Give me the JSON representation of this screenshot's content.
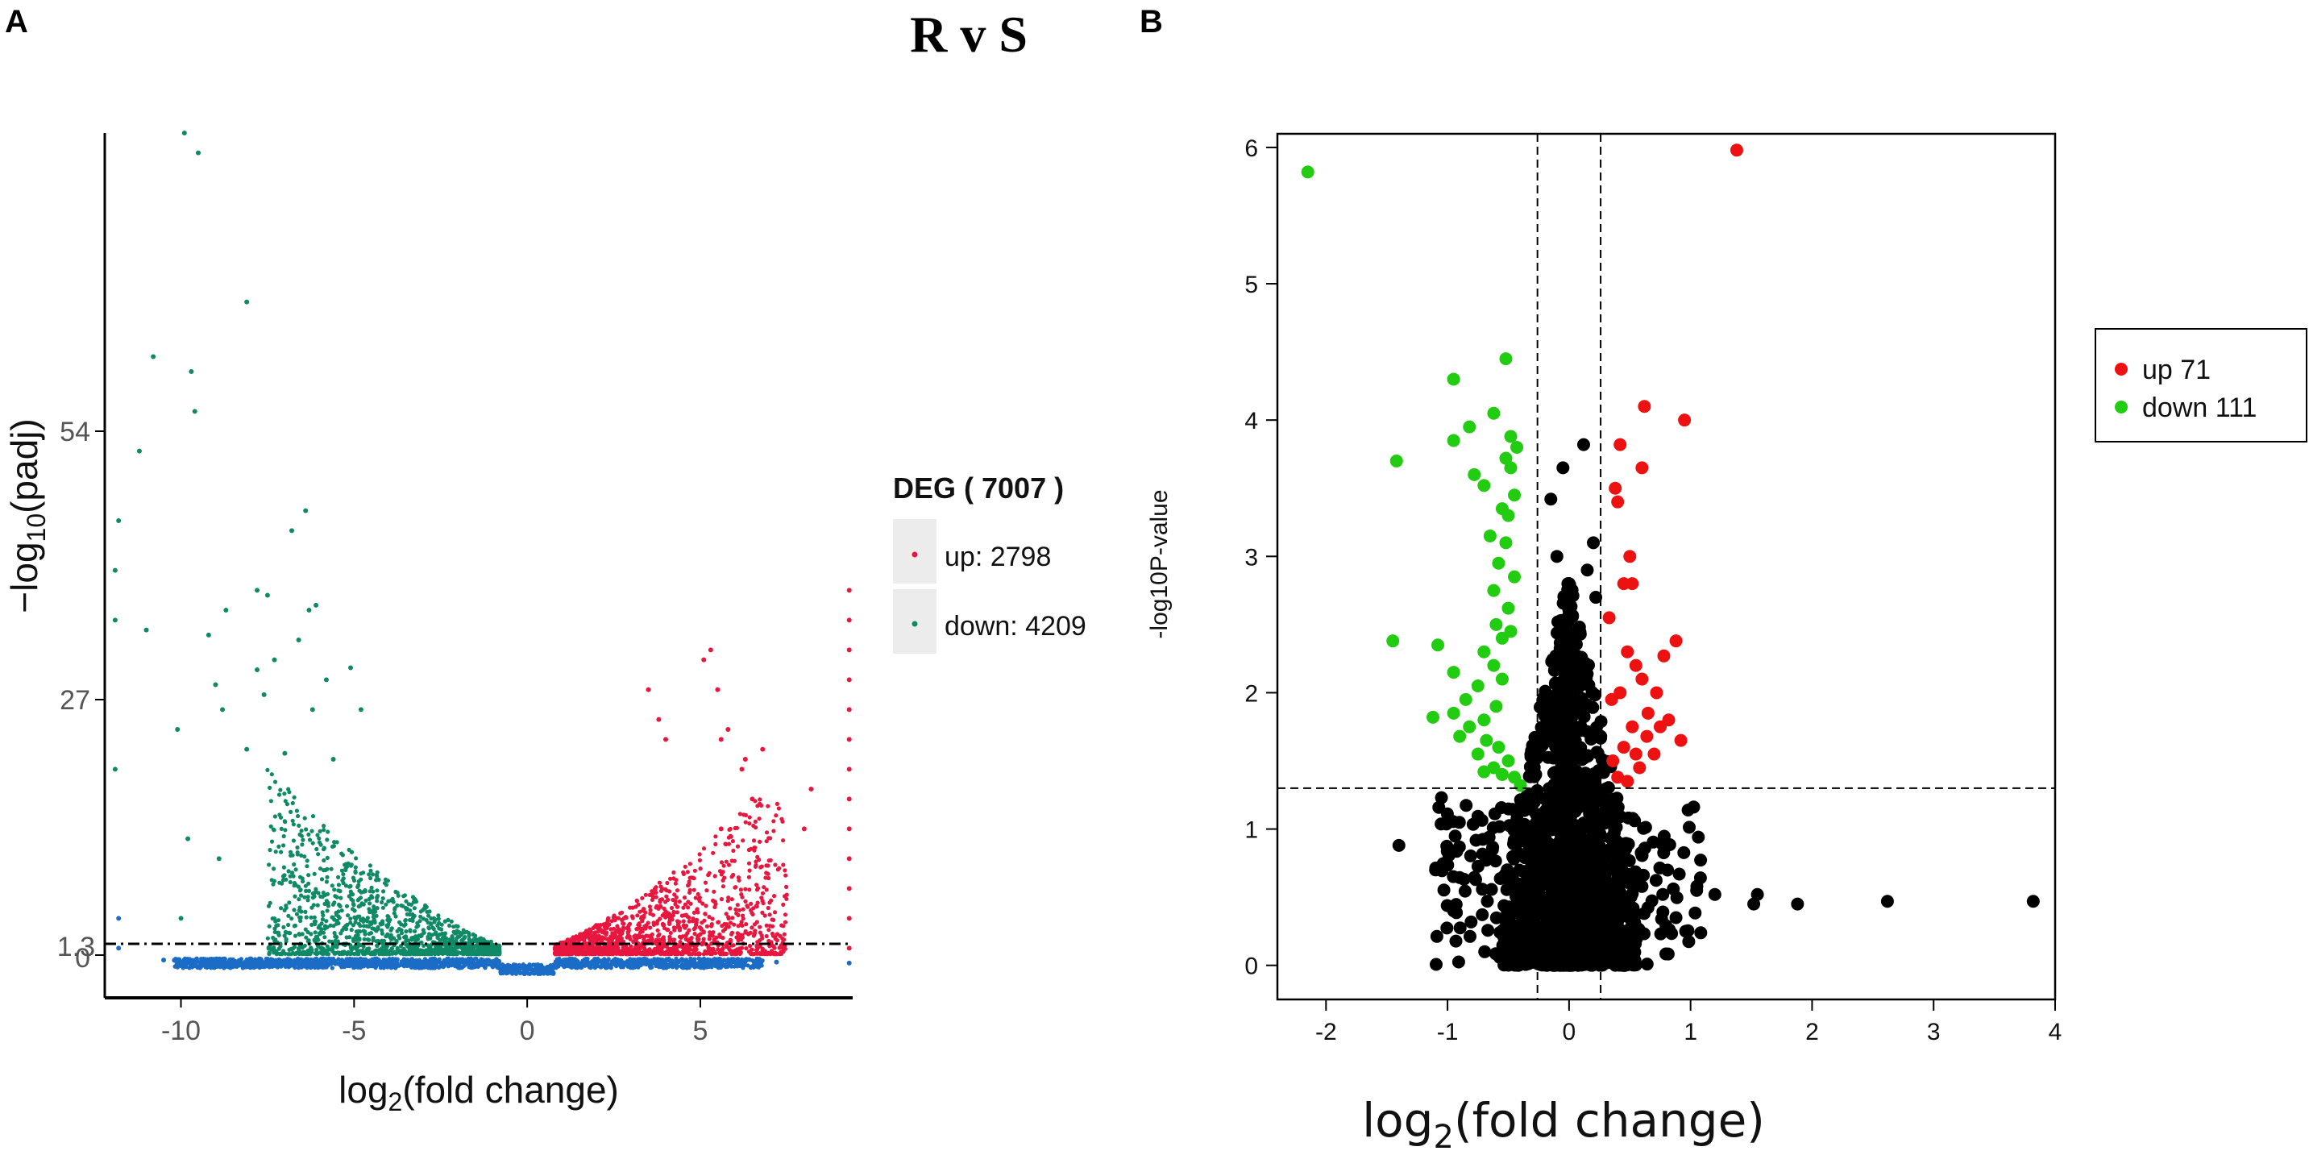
{
  "figure": {
    "panel_a_letter": "A",
    "panel_b_letter": "B",
    "panel_a_title": "R v S"
  },
  "chart_data": [
    {
      "type": "scatter",
      "panel": "A",
      "title": "R v S",
      "xlabel_prefix": "log",
      "xlabel_sub": "2",
      "xlabel_suffix": "(fold change)",
      "ylabel_prefix": "−log",
      "ylabel_sub": "10",
      "ylabel_suffix": "(padj)",
      "xlim": [
        -12.2,
        9.4
      ],
      "ylim": [
        -3,
        84
      ],
      "x_ticks": [
        -10,
        -5,
        0,
        5
      ],
      "x_tick_labels": [
        "-10",
        "-5",
        "0",
        "5"
      ],
      "y_ticks": [
        54,
        27
      ],
      "y_tick_labels": [
        "54",
        "27"
      ],
      "y_overlap_labels": [
        "1.3",
        "0"
      ],
      "threshold_y": 1.3,
      "legend": {
        "title": "DEG ( 7007 )",
        "items": [
          {
            "name": "up",
            "label": "up: 2798",
            "color": "#e8173f"
          },
          {
            "name": "down",
            "label": "down: 4209",
            "color": "#108a66"
          }
        ]
      },
      "colors": {
        "up": "#e8173f",
        "down": "#108a66",
        "ns": "#1a6cc6"
      },
      "series": [
        {
          "name": "down",
          "color": "#108a66",
          "points": [
            [
              -9.9,
              84
            ],
            [
              -9.5,
              82
            ],
            [
              -8.1,
              67
            ],
            [
              -10.8,
              61.5
            ],
            [
              -9.7,
              60
            ],
            [
              -11.2,
              52
            ],
            [
              -9.6,
              56
            ],
            [
              -6.4,
              46
            ],
            [
              -6.8,
              44
            ],
            [
              -7.8,
              38
            ],
            [
              -7.5,
              37.5
            ],
            [
              -8.7,
              36
            ],
            [
              -6.1,
              36.5
            ],
            [
              -6.3,
              36
            ],
            [
              -11,
              34
            ],
            [
              -9.2,
              33.5
            ],
            [
              -6.6,
              33
            ],
            [
              -7.3,
              31
            ],
            [
              -7.8,
              30
            ],
            [
              -5.8,
              29
            ],
            [
              -5.1,
              30.2
            ],
            [
              -9,
              28.5
            ],
            [
              -8.8,
              26
            ],
            [
              -7.6,
              27.5
            ],
            [
              -6.2,
              26
            ],
            [
              -10.1,
              24
            ],
            [
              -8.1,
              22
            ],
            [
              -7,
              21.6
            ],
            [
              -5.6,
              21
            ],
            [
              -4.8,
              26
            ],
            [
              -9.8,
              13
            ],
            [
              -8.9,
              11
            ],
            [
              -10,
              5
            ],
            [
              -11.8,
              45
            ],
            [
              -11.9,
              40
            ],
            [
              -11.9,
              35
            ],
            [
              -11.9,
              20
            ]
          ]
        },
        {
          "name": "up",
          "color": "#e8173f",
          "points": [
            [
              5.3,
              32
            ],
            [
              5.1,
              31
            ],
            [
              5.5,
              28
            ],
            [
              3.5,
              28
            ],
            [
              3.8,
              25
            ],
            [
              5.8,
              24
            ],
            [
              4,
              23
            ],
            [
              5.6,
              23
            ],
            [
              6.8,
              22
            ],
            [
              6.3,
              21
            ],
            [
              6.2,
              20
            ],
            [
              8.2,
              18
            ],
            [
              6.5,
              17
            ],
            [
              8,
              14
            ],
            [
              5.6,
              14
            ],
            [
              9.3,
              38
            ],
            [
              9.3,
              35
            ],
            [
              9.3,
              32
            ],
            [
              9.3,
              29
            ],
            [
              9.3,
              26
            ],
            [
              9.3,
              23
            ],
            [
              9.3,
              20
            ],
            [
              9.3,
              17
            ],
            [
              9.3,
              14
            ],
            [
              9.3,
              11
            ],
            [
              9.3,
              8
            ],
            [
              9.3,
              5
            ],
            [
              9.3,
              2
            ]
          ]
        },
        {
          "name": "ns",
          "color": "#1a6cc6",
          "points": [
            [
              -10.5,
              0.8
            ],
            [
              -9,
              0.7
            ],
            [
              -7.2,
              0.6
            ],
            [
              6.3,
              0.8
            ],
            [
              7.2,
              0.6
            ],
            [
              -11.8,
              2
            ],
            [
              -11.8,
              5
            ],
            [
              9.3,
              0.5
            ]
          ]
        }
      ],
      "density_clouds": [
        {
          "series": "down",
          "x_from": -7.5,
          "x_to": -0.6,
          "max_y": 21
        },
        {
          "series": "up",
          "x_from": 0.6,
          "x_to": 7.5,
          "max_y": 17
        },
        {
          "series": "ns",
          "x_from": -10.2,
          "x_to": 6.8,
          "max_y": 1.2
        }
      ]
    },
    {
      "type": "scatter",
      "panel": "B",
      "title": "",
      "xlabel_prefix": "log",
      "xlabel_sub": "2",
      "xlabel_suffix": "(fold change)",
      "ylabel": "-log10P-value",
      "xlim": [
        -2.4,
        4.0
      ],
      "ylim": [
        -0.25,
        6.1
      ],
      "x_ticks": [
        -2,
        -1,
        0,
        1,
        2,
        3,
        4
      ],
      "x_tick_labels": [
        "-2",
        "-1",
        "0",
        "1",
        "2",
        "3",
        "4"
      ],
      "y_ticks": [
        0,
        1,
        2,
        3,
        4,
        5,
        6
      ],
      "y_tick_labels": [
        "0",
        "1",
        "2",
        "3",
        "4",
        "5",
        "6"
      ],
      "threshold_y": 1.3,
      "threshold_x": [
        -0.26,
        0.26
      ],
      "legend": {
        "items": [
          {
            "name": "up",
            "label": "up  71",
            "color": "#ee1111"
          },
          {
            "name": "down",
            "label": "down  111",
            "color": "#22cc11"
          }
        ]
      },
      "colors": {
        "up": "#ee1111",
        "down": "#22cc11",
        "ns": "#000000"
      },
      "series": [
        {
          "name": "up",
          "color": "#ee1111",
          "points": [
            [
              1.38,
              5.98
            ],
            [
              0.62,
              4.1
            ],
            [
              0.95,
              4.0
            ],
            [
              0.6,
              3.65
            ],
            [
              0.42,
              3.82
            ],
            [
              0.38,
              3.5
            ],
            [
              0.4,
              3.4
            ],
            [
              0.5,
              3.0
            ],
            [
              0.45,
              2.8
            ],
            [
              0.52,
              2.8
            ],
            [
              0.88,
              2.38
            ],
            [
              0.33,
              2.55
            ],
            [
              0.48,
              2.3
            ],
            [
              0.55,
              2.2
            ],
            [
              0.78,
              2.27
            ],
            [
              0.6,
              2.1
            ],
            [
              0.72,
              2.0
            ],
            [
              0.42,
              2.0
            ],
            [
              0.35,
              1.95
            ],
            [
              0.65,
              1.85
            ],
            [
              0.82,
              1.8
            ],
            [
              0.52,
              1.75
            ],
            [
              0.92,
              1.65
            ],
            [
              0.45,
              1.6
            ],
            [
              0.7,
              1.55
            ],
            [
              0.36,
              1.5
            ],
            [
              0.58,
              1.45
            ],
            [
              0.4,
              1.38
            ],
            [
              0.48,
              1.35
            ],
            [
              0.55,
              1.55
            ],
            [
              0.64,
              1.68
            ],
            [
              0.75,
              1.75
            ]
          ]
        },
        {
          "name": "down",
          "color": "#22cc11",
          "points": [
            [
              -2.15,
              5.82
            ],
            [
              -0.52,
              4.45
            ],
            [
              -0.95,
              4.3
            ],
            [
              -0.62,
              4.05
            ],
            [
              -0.82,
              3.95
            ],
            [
              -0.95,
              3.85
            ],
            [
              -0.48,
              3.88
            ],
            [
              -0.43,
              3.8
            ],
            [
              -1.42,
              3.7
            ],
            [
              -0.52,
              3.72
            ],
            [
              -0.48,
              3.65
            ],
            [
              -0.78,
              3.6
            ],
            [
              -0.7,
              3.52
            ],
            [
              -0.45,
              3.45
            ],
            [
              -0.55,
              3.35
            ],
            [
              -0.5,
              3.3
            ],
            [
              -0.65,
              3.15
            ],
            [
              -0.52,
              3.1
            ],
            [
              -0.58,
              2.95
            ],
            [
              -0.45,
              2.85
            ],
            [
              -0.62,
              2.75
            ],
            [
              -0.5,
              2.62
            ],
            [
              -0.6,
              2.5
            ],
            [
              -0.48,
              2.45
            ],
            [
              -0.55,
              2.4
            ],
            [
              -1.45,
              2.38
            ],
            [
              -1.08,
              2.35
            ],
            [
              -0.7,
              2.3
            ],
            [
              -0.62,
              2.2
            ],
            [
              -0.55,
              2.1
            ],
            [
              -0.95,
              2.15
            ],
            [
              -0.75,
              2.05
            ],
            [
              -0.85,
              1.95
            ],
            [
              -0.6,
              1.9
            ],
            [
              -0.7,
              1.8
            ],
            [
              -1.12,
              1.82
            ],
            [
              -0.95,
              1.85
            ],
            [
              -0.82,
              1.75
            ],
            [
              -0.68,
              1.65
            ],
            [
              -0.58,
              1.6
            ],
            [
              -0.75,
              1.55
            ],
            [
              -0.5,
              1.5
            ],
            [
              -0.62,
              1.45
            ],
            [
              -0.55,
              1.4
            ],
            [
              -0.45,
              1.38
            ],
            [
              -0.4,
              1.32
            ],
            [
              -0.7,
              1.42
            ],
            [
              -0.9,
              1.68
            ]
          ]
        },
        {
          "name": "ns",
          "color": "#000000",
          "points": [
            [
              -1.4,
              0.88
            ],
            [
              -1.05,
              1.23
            ],
            [
              -0.95,
              0.4
            ],
            [
              1.55,
              0.52
            ],
            [
              1.52,
              0.45
            ],
            [
              1.88,
              0.45
            ],
            [
              2.62,
              0.47
            ],
            [
              3.82,
              0.47
            ],
            [
              0.88,
              0.35
            ],
            [
              1.2,
              0.52
            ],
            [
              1.05,
              0.55
            ],
            [
              0.12,
              3.82
            ],
            [
              -0.05,
              3.65
            ],
            [
              0.2,
              3.1
            ],
            [
              -0.15,
              3.42
            ],
            [
              0.15,
              2.9
            ],
            [
              -0.1,
              3.0
            ],
            [
              0.22,
              2.7
            ]
          ]
        }
      ],
      "density_clouds": [
        {
          "series": "ns",
          "x_from": -0.55,
          "x_to": 0.55,
          "max_y": 2.8
        }
      ]
    }
  ]
}
